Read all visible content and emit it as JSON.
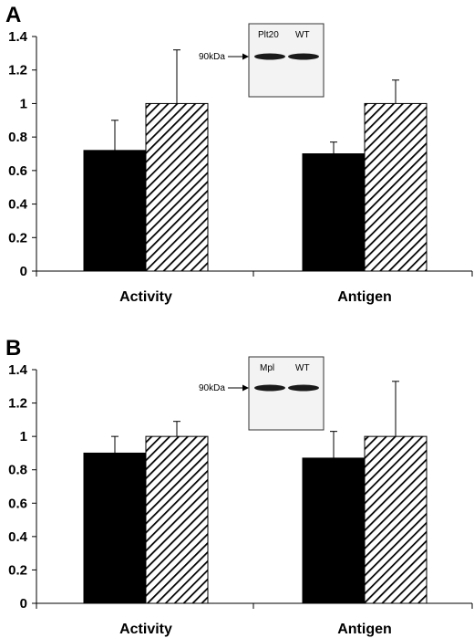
{
  "chart_data": [
    {
      "type": "bar",
      "panel_label": "A",
      "categories": [
        "Activity",
        "Antigen"
      ],
      "series": [
        {
          "color": "#000000",
          "pattern": "solid",
          "values": [
            0.72,
            0.7
          ],
          "errors": [
            0.18,
            0.07
          ]
        },
        {
          "color": "#000000",
          "pattern": "diagonal-hatch",
          "values": [
            1.0,
            1.0
          ],
          "errors": [
            0.32,
            0.14
          ]
        }
      ],
      "yticks": [
        "0",
        "0.2",
        "0.4",
        "0.6",
        "0.8",
        "1",
        "1.2",
        "1.4"
      ],
      "ylim": [
        0,
        1.4
      ],
      "grid": false,
      "blot_inset": {
        "lanes": [
          "Plt20",
          "WT"
        ],
        "marker": "90kDa"
      }
    },
    {
      "type": "bar",
      "panel_label": "B",
      "categories": [
        "Activity",
        "Antigen"
      ],
      "series": [
        {
          "color": "#000000",
          "pattern": "solid",
          "values": [
            0.9,
            0.87
          ],
          "errors": [
            0.1,
            0.16
          ]
        },
        {
          "color": "#000000",
          "pattern": "diagonal-hatch",
          "values": [
            1.0,
            1.0
          ],
          "errors": [
            0.09,
            0.33
          ]
        }
      ],
      "yticks": [
        "0",
        "0.2",
        "0.4",
        "0.6",
        "0.8",
        "1",
        "1.2",
        "1.4"
      ],
      "ylim": [
        0,
        1.4
      ],
      "grid": false,
      "blot_inset": {
        "lanes": [
          "Mpl",
          "WT"
        ],
        "marker": "90kDa"
      }
    }
  ]
}
